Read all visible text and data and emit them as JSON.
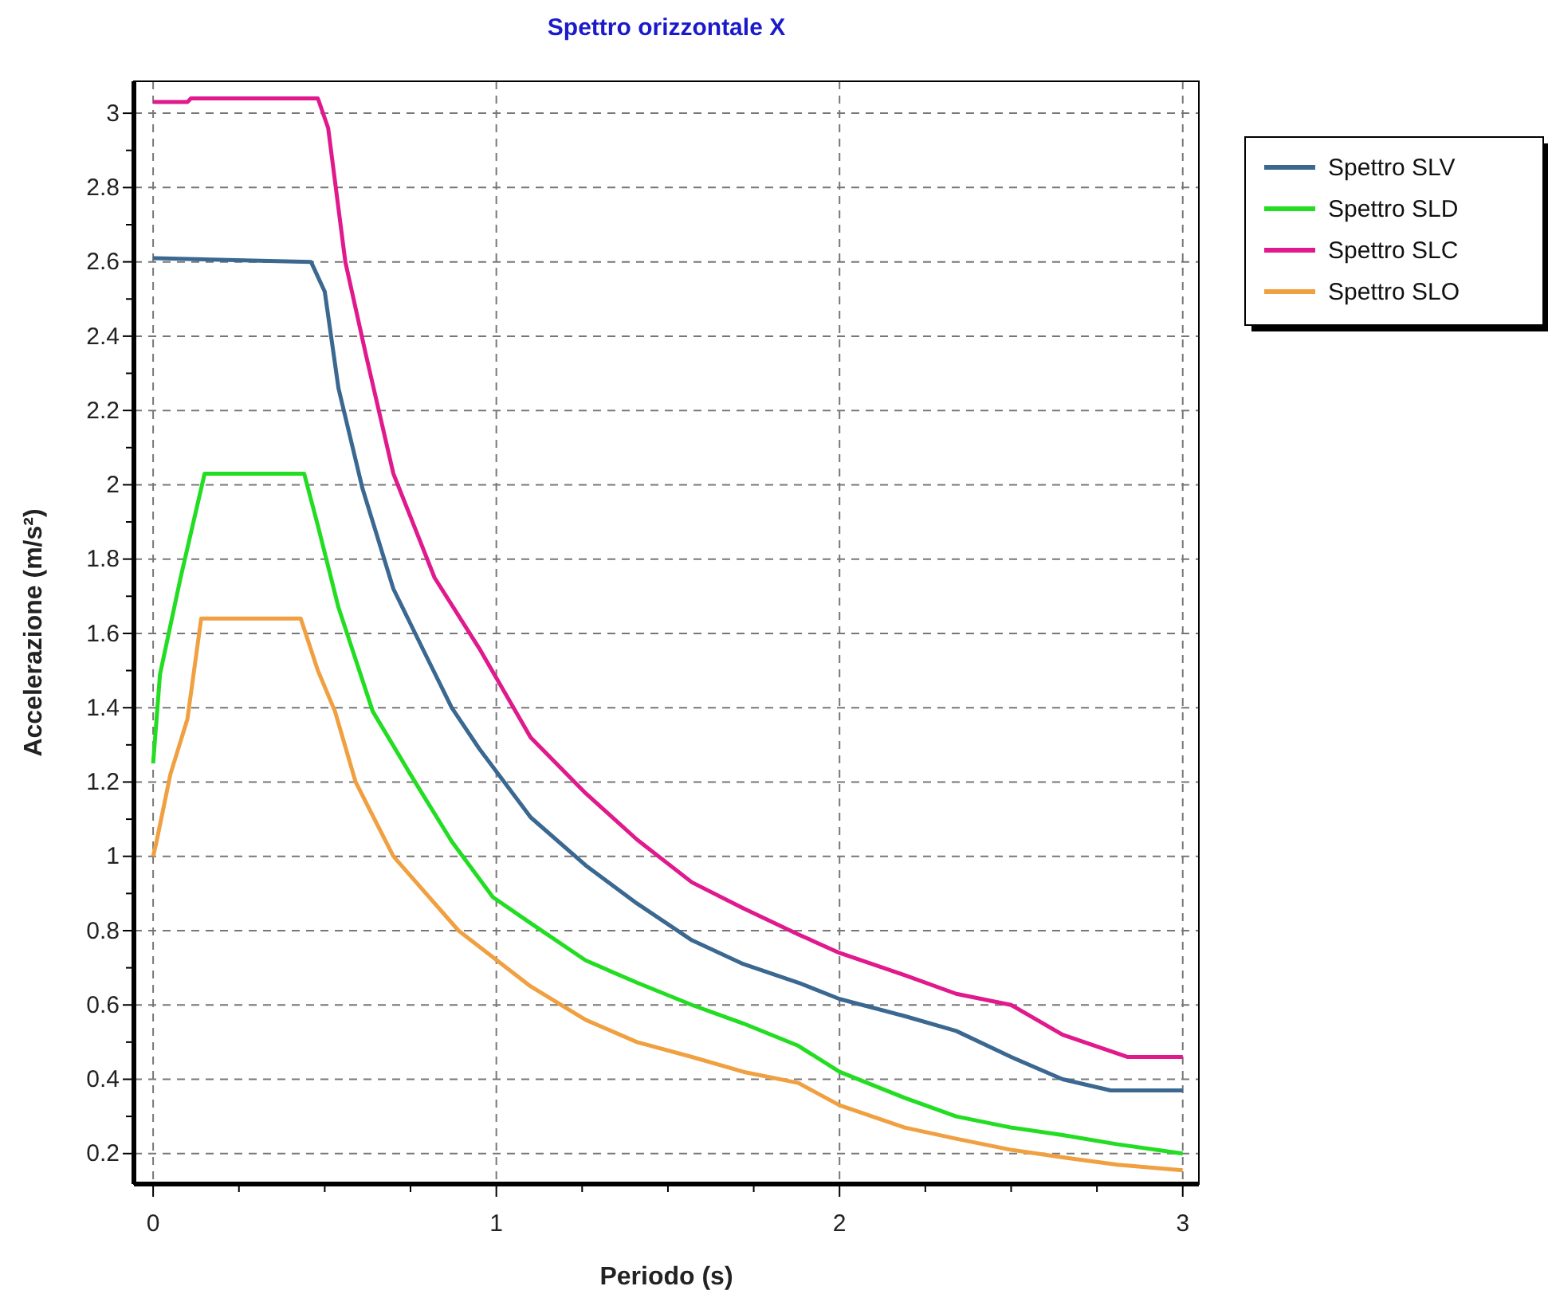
{
  "chart_data": {
    "type": "line",
    "title": "Spettro orizzontale X",
    "xlabel": "Periodo (s)",
    "ylabel": "Accelerazione (m/s²)",
    "xlim": [
      -0.056,
      3.047
    ],
    "ylim": [
      0.118,
      3.086
    ],
    "xticks": [
      0,
      {
        "value": 0.25,
        "label": null
      },
      {
        "value": 0.5,
        "label": null
      },
      {
        "value": 0.75,
        "label": null
      },
      1,
      {
        "value": 1.25,
        "label": null
      },
      {
        "value": 1.5,
        "label": null
      },
      {
        "value": 1.75,
        "label": null
      },
      2,
      {
        "value": 2.25,
        "label": null
      },
      {
        "value": 2.5,
        "label": null
      },
      {
        "value": 2.75,
        "label": null
      },
      3
    ],
    "yticks": [
      0.2,
      {
        "value": 0.3,
        "label": null
      },
      0.4,
      {
        "value": 0.5,
        "label": null
      },
      0.6,
      {
        "value": 0.7,
        "label": null
      },
      0.8,
      {
        "value": 0.9,
        "label": null
      },
      1,
      {
        "value": 1.1,
        "label": null
      },
      1.2,
      {
        "value": 1.3,
        "label": null
      },
      1.4,
      {
        "value": 1.5,
        "label": null
      },
      1.6,
      {
        "value": 1.7,
        "label": null
      },
      1.8,
      {
        "value": 1.9,
        "label": null
      },
      2,
      {
        "value": 2.1,
        "label": null
      },
      2.2,
      {
        "value": 2.3,
        "label": null
      },
      2.4,
      {
        "value": 2.5,
        "label": null
      },
      2.6,
      {
        "value": 2.7,
        "label": null
      },
      2.8,
      {
        "value": 2.9,
        "label": null
      },
      3
    ],
    "grid": true,
    "legend": "top right",
    "marker": "none",
    "line_style": "solid",
    "series": [
      {
        "name": "Spettro SLV",
        "color": "#3a6890",
        "x": [
          0,
          0.46,
          0.5,
          0.54,
          0.61,
          0.7,
          0.79,
          0.87,
          0.95,
          1.1,
          1.26,
          1.41,
          1.57,
          1.72,
          1.88,
          2.0,
          2.19,
          2.34,
          2.5,
          2.65,
          2.79,
          3.0
        ],
        "values": [
          2.61,
          2.6,
          2.52,
          2.26,
          1.99,
          1.72,
          1.55,
          1.4,
          1.29,
          1.105,
          0.976,
          0.873,
          0.774,
          0.71,
          0.66,
          0.616,
          0.57,
          0.53,
          0.46,
          0.4,
          0.37,
          0.37
        ]
      },
      {
        "name": "Spettro SLD",
        "color": "#22dd22",
        "x": [
          0,
          0.02,
          0.08,
          0.15,
          0.44,
          0.48,
          0.54,
          0.64,
          0.75,
          0.87,
          0.99,
          1.1,
          1.26,
          1.41,
          1.57,
          1.72,
          1.88,
          2.0,
          2.19,
          2.34,
          2.5,
          2.65,
          2.81,
          3.0
        ],
        "values": [
          1.25,
          1.49,
          1.75,
          2.03,
          2.03,
          1.89,
          1.67,
          1.39,
          1.22,
          1.04,
          0.89,
          0.82,
          0.72,
          0.66,
          0.6,
          0.55,
          0.49,
          0.42,
          0.35,
          0.3,
          0.27,
          0.25,
          0.225,
          0.2
        ]
      },
      {
        "name": "Spettro SLC",
        "color": "#e0198c",
        "x": [
          0,
          0.1,
          0.11,
          0.48,
          0.51,
          0.56,
          0.62,
          0.7,
          0.82,
          0.95,
          1.1,
          1.26,
          1.41,
          1.57,
          1.72,
          1.88,
          2.0,
          2.19,
          2.34,
          2.5,
          2.65,
          2.84,
          3.0
        ],
        "values": [
          3.03,
          3.03,
          3.04,
          3.04,
          2.96,
          2.6,
          2.35,
          2.03,
          1.75,
          1.56,
          1.32,
          1.17,
          1.045,
          0.93,
          0.86,
          0.79,
          0.74,
          0.68,
          0.63,
          0.6,
          0.52,
          0.46,
          0.46
        ]
      },
      {
        "name": "Spettro SLO",
        "color": "#f0a040",
        "x": [
          0,
          0.01,
          0.05,
          0.1,
          0.14,
          0.43,
          0.48,
          0.53,
          0.59,
          0.7,
          0.89,
          1.1,
          1.26,
          1.41,
          1.57,
          1.72,
          1.88,
          2.0,
          2.19,
          2.34,
          2.5,
          2.65,
          2.81,
          3.0
        ],
        "values": [
          1.0,
          1.04,
          1.22,
          1.37,
          1.64,
          1.64,
          1.5,
          1.39,
          1.2,
          1.0,
          0.8,
          0.65,
          0.56,
          0.5,
          0.46,
          0.42,
          0.39,
          0.33,
          0.27,
          0.24,
          0.21,
          0.19,
          0.17,
          0.155
        ]
      }
    ]
  }
}
